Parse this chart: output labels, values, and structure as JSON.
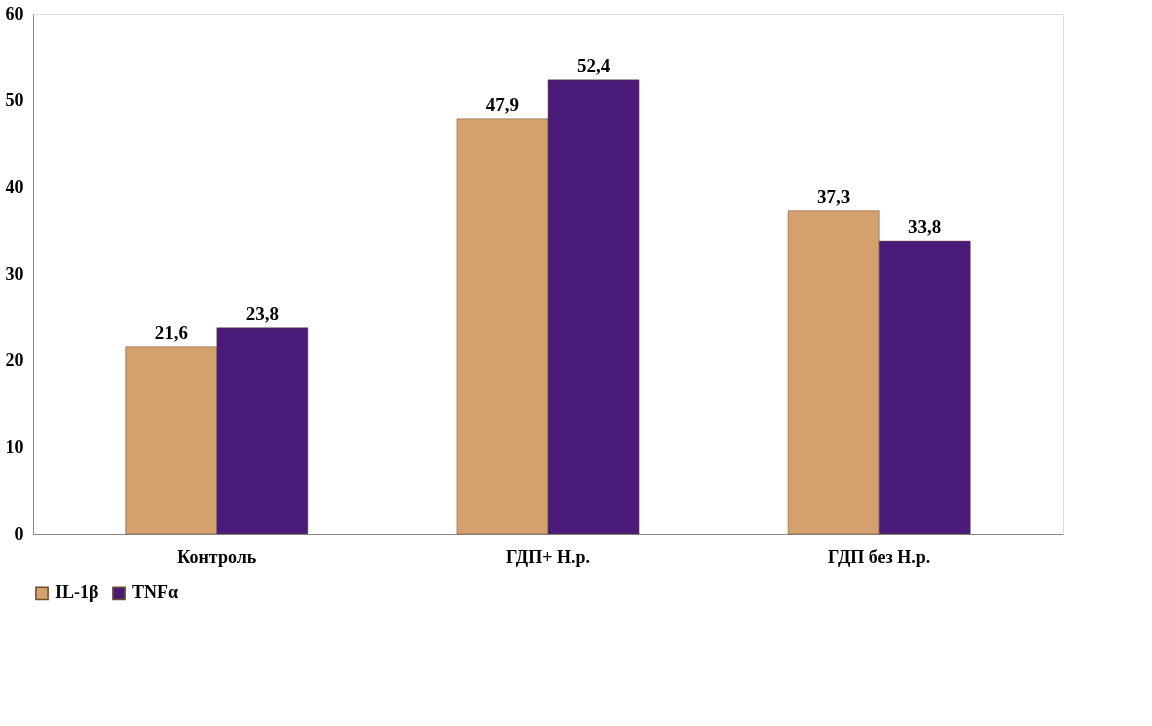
{
  "chart_data": {
    "type": "bar",
    "categories": [
      "Контроль",
      "ГДП+ Н.р.",
      "ГДП без Н.р."
    ],
    "series": [
      {
        "name": "IL-1β",
        "color": "#d4a06e",
        "values": [
          21.6,
          47.9,
          37.3
        ]
      },
      {
        "name": "TNFα",
        "color": "#4a1a78",
        "values": [
          23.8,
          52.4,
          33.8
        ]
      }
    ],
    "value_labels": [
      [
        "21,6",
        "47,9",
        "37,3"
      ],
      [
        "23,8",
        "52,4",
        "33,8"
      ]
    ],
    "ylim": [
      0,
      60
    ],
    "yticks": [
      0,
      10,
      20,
      30,
      40,
      50,
      60
    ],
    "grid": false,
    "legend": "bottom"
  }
}
